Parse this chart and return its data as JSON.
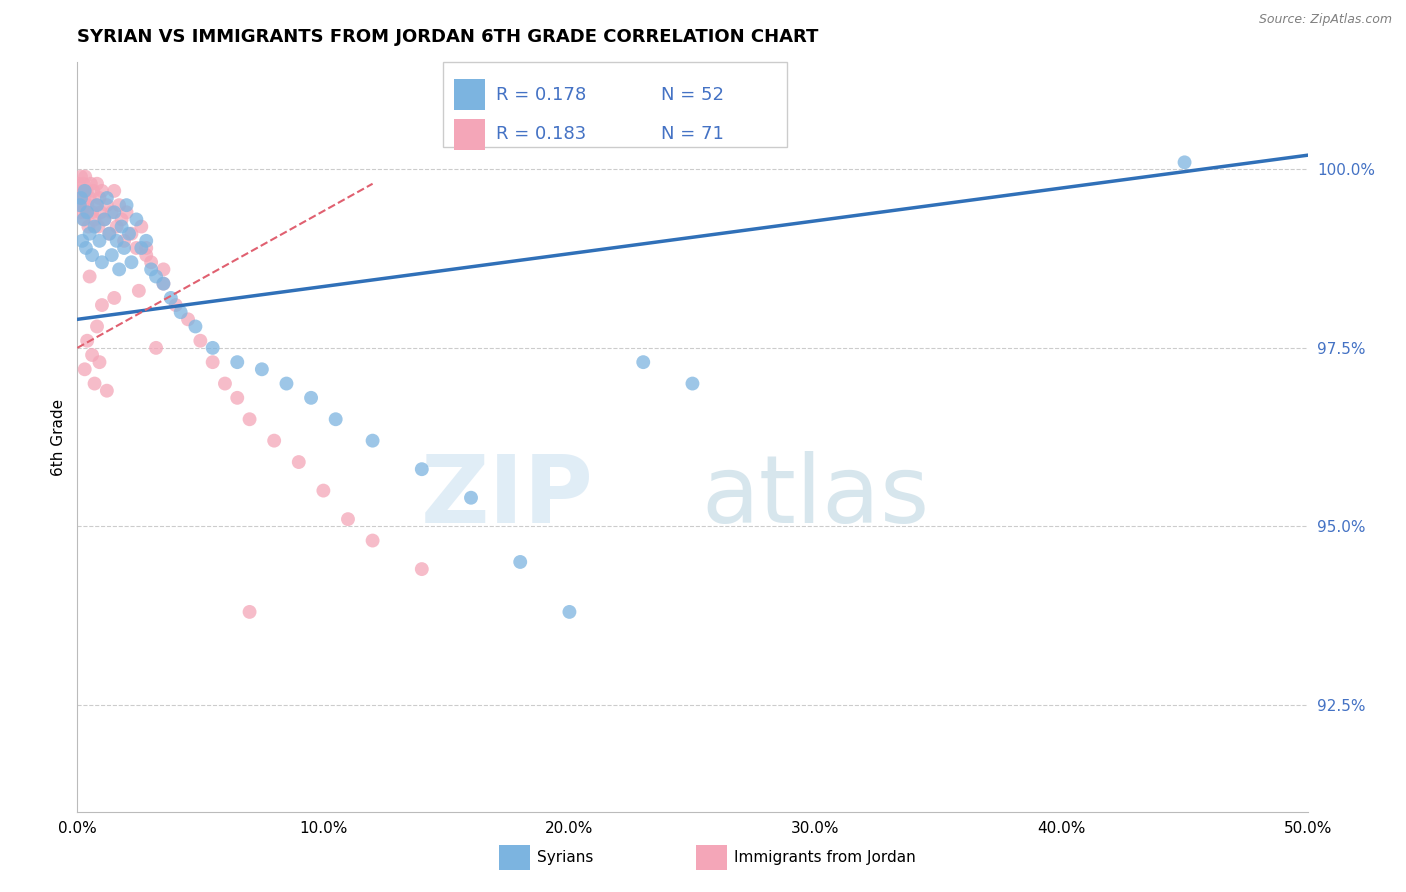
{
  "title": "SYRIAN VS IMMIGRANTS FROM JORDAN 6TH GRADE CORRELATION CHART",
  "source": "Source: ZipAtlas.com",
  "ylabel": "6th Grade",
  "xlim": [
    0.0,
    50.0
  ],
  "ylim": [
    91.0,
    101.5
  ],
  "yticks": [
    92.5,
    95.0,
    97.5,
    100.0
  ],
  "ytick_labels": [
    "92.5%",
    "95.0%",
    "97.5%",
    "100.0%"
  ],
  "xticks": [
    0.0,
    10.0,
    20.0,
    30.0,
    40.0,
    50.0
  ],
  "xtick_labels": [
    "0.0%",
    "10.0%",
    "20.0%",
    "30.0%",
    "40.0%",
    "50.0%"
  ],
  "legend_R1": "R = 0.178",
  "legend_N1": "N = 52",
  "legend_R2": "R = 0.183",
  "legend_N2": "N = 71",
  "color_blue": "#7CB4E0",
  "color_pink": "#F4A6B8",
  "color_trend_blue": "#3070B8",
  "color_trend_pink": "#E06070",
  "color_trend_gray": "#B0B0B0",
  "color_axis_text": "#4472C4",
  "blue_scatter_x": [
    0.1,
    0.15,
    0.2,
    0.25,
    0.3,
    0.35,
    0.4,
    0.5,
    0.6,
    0.7,
    0.8,
    0.9,
    1.0,
    1.1,
    1.2,
    1.3,
    1.4,
    1.5,
    1.6,
    1.7,
    1.8,
    1.9,
    2.0,
    2.1,
    2.2,
    2.4,
    2.6,
    2.8,
    3.0,
    3.2,
    3.5,
    3.8,
    4.2,
    4.8,
    5.5,
    6.5,
    7.5,
    8.5,
    9.5,
    10.5,
    12.0,
    14.0,
    16.0,
    18.0,
    20.0,
    23.0,
    25.0,
    45.0
  ],
  "blue_scatter_y": [
    99.5,
    99.6,
    99.0,
    99.3,
    99.7,
    98.9,
    99.4,
    99.1,
    98.8,
    99.2,
    99.5,
    99.0,
    98.7,
    99.3,
    99.6,
    99.1,
    98.8,
    99.4,
    99.0,
    98.6,
    99.2,
    98.9,
    99.5,
    99.1,
    98.7,
    99.3,
    98.9,
    99.0,
    98.6,
    98.5,
    98.4,
    98.2,
    98.0,
    97.8,
    97.5,
    97.3,
    97.2,
    97.0,
    96.8,
    96.5,
    96.2,
    95.8,
    95.4,
    94.5,
    93.8,
    97.3,
    97.0,
    100.1
  ],
  "pink_scatter_x": [
    0.05,
    0.1,
    0.12,
    0.15,
    0.18,
    0.2,
    0.22,
    0.25,
    0.28,
    0.3,
    0.32,
    0.35,
    0.38,
    0.4,
    0.45,
    0.5,
    0.55,
    0.6,
    0.65,
    0.7,
    0.75,
    0.8,
    0.85,
    0.9,
    0.95,
    1.0,
    1.1,
    1.2,
    1.3,
    1.4,
    1.5,
    1.6,
    1.7,
    1.8,
    1.9,
    2.0,
    2.2,
    2.4,
    2.6,
    2.8,
    3.0,
    3.5,
    4.0,
    4.5,
    5.0,
    5.5,
    6.0,
    6.5,
    7.0,
    8.0,
    9.0,
    10.0,
    11.0,
    12.0,
    14.0,
    7.0,
    3.2,
    3.5,
    2.5,
    2.8,
    1.5,
    0.8,
    1.0,
    0.5,
    0.6,
    0.3,
    0.4,
    0.7,
    0.9,
    1.2
  ],
  "pink_scatter_y": [
    99.8,
    99.5,
    99.6,
    99.9,
    99.4,
    99.7,
    99.5,
    99.8,
    99.3,
    99.6,
    99.9,
    99.4,
    99.7,
    99.5,
    99.2,
    99.6,
    99.8,
    99.4,
    99.7,
    99.3,
    99.5,
    99.8,
    99.2,
    99.6,
    99.4,
    99.7,
    99.3,
    99.5,
    99.1,
    99.4,
    99.7,
    99.2,
    99.5,
    99.3,
    99.0,
    99.4,
    99.1,
    98.9,
    99.2,
    98.8,
    98.7,
    98.4,
    98.1,
    97.9,
    97.6,
    97.3,
    97.0,
    96.8,
    96.5,
    96.2,
    95.9,
    95.5,
    95.1,
    94.8,
    94.4,
    93.8,
    97.5,
    98.6,
    98.3,
    98.9,
    98.2,
    97.8,
    98.1,
    98.5,
    97.4,
    97.2,
    97.6,
    97.0,
    97.3,
    96.9
  ],
  "blue_trend_x0": 0.0,
  "blue_trend_y0": 97.9,
  "blue_trend_x1": 50.0,
  "blue_trend_y1": 100.2,
  "pink_trend_x0": 0.0,
  "pink_trend_y0": 97.5,
  "pink_trend_x1": 12.0,
  "pink_trend_y1": 99.8,
  "watermark_zip": "ZIP",
  "watermark_atlas": "atlas"
}
